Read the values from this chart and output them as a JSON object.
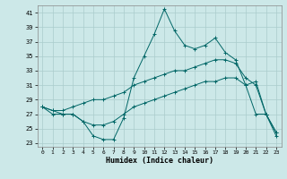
{
  "xlabel": "Humidex (Indice chaleur)",
  "bg_color": "#cce8e8",
  "grid_color": "#aacccc",
  "line_color": "#006666",
  "xlim": [
    -0.5,
    23.5
  ],
  "ylim": [
    22.5,
    42
  ],
  "yticks": [
    23,
    25,
    27,
    29,
    31,
    33,
    35,
    37,
    39,
    41
  ],
  "xticks": [
    0,
    1,
    2,
    3,
    4,
    5,
    6,
    7,
    8,
    9,
    10,
    11,
    12,
    13,
    14,
    15,
    16,
    17,
    18,
    19,
    20,
    21,
    22,
    23
  ],
  "line1_x": [
    0,
    1,
    2,
    3,
    4,
    5,
    6,
    7,
    8,
    9,
    10,
    11,
    12,
    13,
    14,
    15,
    16,
    17,
    18,
    19,
    20,
    21,
    22,
    23
  ],
  "line1_y": [
    28,
    27,
    27,
    27,
    26,
    24,
    23.5,
    23.5,
    26.5,
    32,
    35,
    38,
    41.5,
    38.5,
    36.5,
    36,
    36.5,
    37.5,
    35.5,
    34.5,
    31,
    27,
    27,
    24.5
  ],
  "line2_x": [
    0,
    1,
    2,
    3,
    4,
    5,
    6,
    7,
    8,
    9,
    10,
    11,
    12,
    13,
    14,
    15,
    16,
    17,
    18,
    19,
    20,
    21,
    22,
    23
  ],
  "line2_y": [
    28,
    27.5,
    27.5,
    28,
    28.5,
    29,
    29,
    29.5,
    30,
    31,
    31.5,
    32,
    32.5,
    33,
    33,
    33.5,
    34,
    34.5,
    34.5,
    34,
    32,
    31,
    27,
    24.5
  ],
  "line3_x": [
    0,
    1,
    2,
    3,
    4,
    5,
    6,
    7,
    8,
    9,
    10,
    11,
    12,
    13,
    14,
    15,
    16,
    17,
    18,
    19,
    20,
    21,
    22,
    23
  ],
  "line3_y": [
    28,
    27.5,
    27,
    27,
    26,
    25.5,
    25.5,
    26,
    27,
    28,
    28.5,
    29,
    29.5,
    30,
    30.5,
    31,
    31.5,
    31.5,
    32,
    32,
    31,
    31.5,
    27,
    24
  ]
}
